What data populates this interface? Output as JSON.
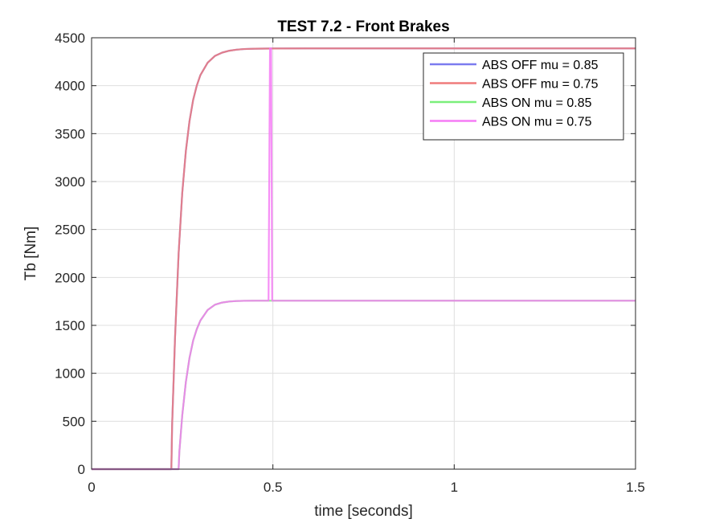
{
  "chart_data": {
    "type": "line",
    "title": "TEST 7.2 - Front Brakes",
    "xlabel": "time [seconds]",
    "ylabel": "Tb [Nm]",
    "xlim": [
      0,
      1.5
    ],
    "ylim": [
      0,
      4500
    ],
    "xticks": [
      0,
      0.5,
      1,
      1.5
    ],
    "xtick_labels": [
      "0",
      "0.5",
      "1",
      "1.5"
    ],
    "yticks": [
      0,
      500,
      1000,
      1500,
      2000,
      2500,
      3000,
      3500,
      4000,
      4500
    ],
    "ytick_labels": [
      "0",
      "500",
      "1000",
      "1500",
      "2000",
      "2500",
      "3000",
      "3500",
      "4000",
      "4500"
    ],
    "grid": true,
    "legend_position": "top-right",
    "series": [
      {
        "name": "ABS OFF mu = 0.85",
        "color": "#7b7bef",
        "x": [
          0,
          0.22,
          0.222,
          0.23,
          0.24,
          0.25,
          0.26,
          0.27,
          0.28,
          0.29,
          0.3,
          0.32,
          0.34,
          0.36,
          0.38,
          0.4,
          0.42,
          0.45,
          0.5,
          0.6,
          0.8,
          1.0,
          1.2,
          1.5
        ],
        "y": [
          0,
          0,
          450,
          1360,
          2250,
          2880,
          3320,
          3630,
          3850,
          4000,
          4110,
          4240,
          4310,
          4345,
          4365,
          4376,
          4382,
          4386,
          4388,
          4389,
          4389,
          4389,
          4389,
          4389
        ]
      },
      {
        "name": "ABS OFF mu = 0.75",
        "color": "#ef7b7b",
        "x": [
          0,
          0.22,
          0.222,
          0.23,
          0.24,
          0.25,
          0.26,
          0.27,
          0.28,
          0.29,
          0.3,
          0.32,
          0.34,
          0.36,
          0.38,
          0.4,
          0.42,
          0.45,
          0.5,
          0.6,
          0.8,
          1.0,
          1.2,
          1.5
        ],
        "y": [
          0,
          0,
          450,
          1360,
          2250,
          2880,
          3320,
          3630,
          3850,
          4000,
          4110,
          4240,
          4310,
          4345,
          4365,
          4376,
          4382,
          4386,
          4388,
          4389,
          4389,
          4389,
          4389,
          4389
        ]
      },
      {
        "name": "ABS ON  mu = 0.85",
        "color": "#7bef7b",
        "x": [
          0,
          0.24,
          0.242,
          0.25,
          0.26,
          0.27,
          0.28,
          0.29,
          0.3,
          0.32,
          0.34,
          0.36,
          0.38,
          0.4,
          0.42,
          0.45,
          0.48,
          0.5,
          0.6,
          0.8,
          1.0,
          1.2,
          1.5
        ],
        "y": [
          0,
          0,
          180,
          560,
          910,
          1160,
          1340,
          1460,
          1550,
          1660,
          1715,
          1738,
          1749,
          1754,
          1756,
          1757,
          1757,
          1757,
          1757,
          1757,
          1757,
          1757,
          1757
        ]
      },
      {
        "name": "ABS ON  mu = 0.75",
        "color": "#f57bf5",
        "x": [
          0,
          0.24,
          0.242,
          0.25,
          0.26,
          0.27,
          0.28,
          0.29,
          0.3,
          0.32,
          0.34,
          0.36,
          0.38,
          0.4,
          0.42,
          0.45,
          0.48,
          0.488,
          0.492,
          0.495,
          0.498,
          0.5,
          0.6,
          0.8,
          1.0,
          1.2,
          1.5
        ],
        "y": [
          0,
          0,
          180,
          560,
          910,
          1160,
          1340,
          1460,
          1550,
          1660,
          1715,
          1738,
          1749,
          1754,
          1756,
          1757,
          1757,
          1757,
          4389,
          4389,
          1757,
          1757,
          1757,
          1757,
          1757,
          1757,
          1757
        ]
      }
    ],
    "overlap_color": "#bc3a86",
    "overlap_color_lower": "#b47ec6"
  }
}
